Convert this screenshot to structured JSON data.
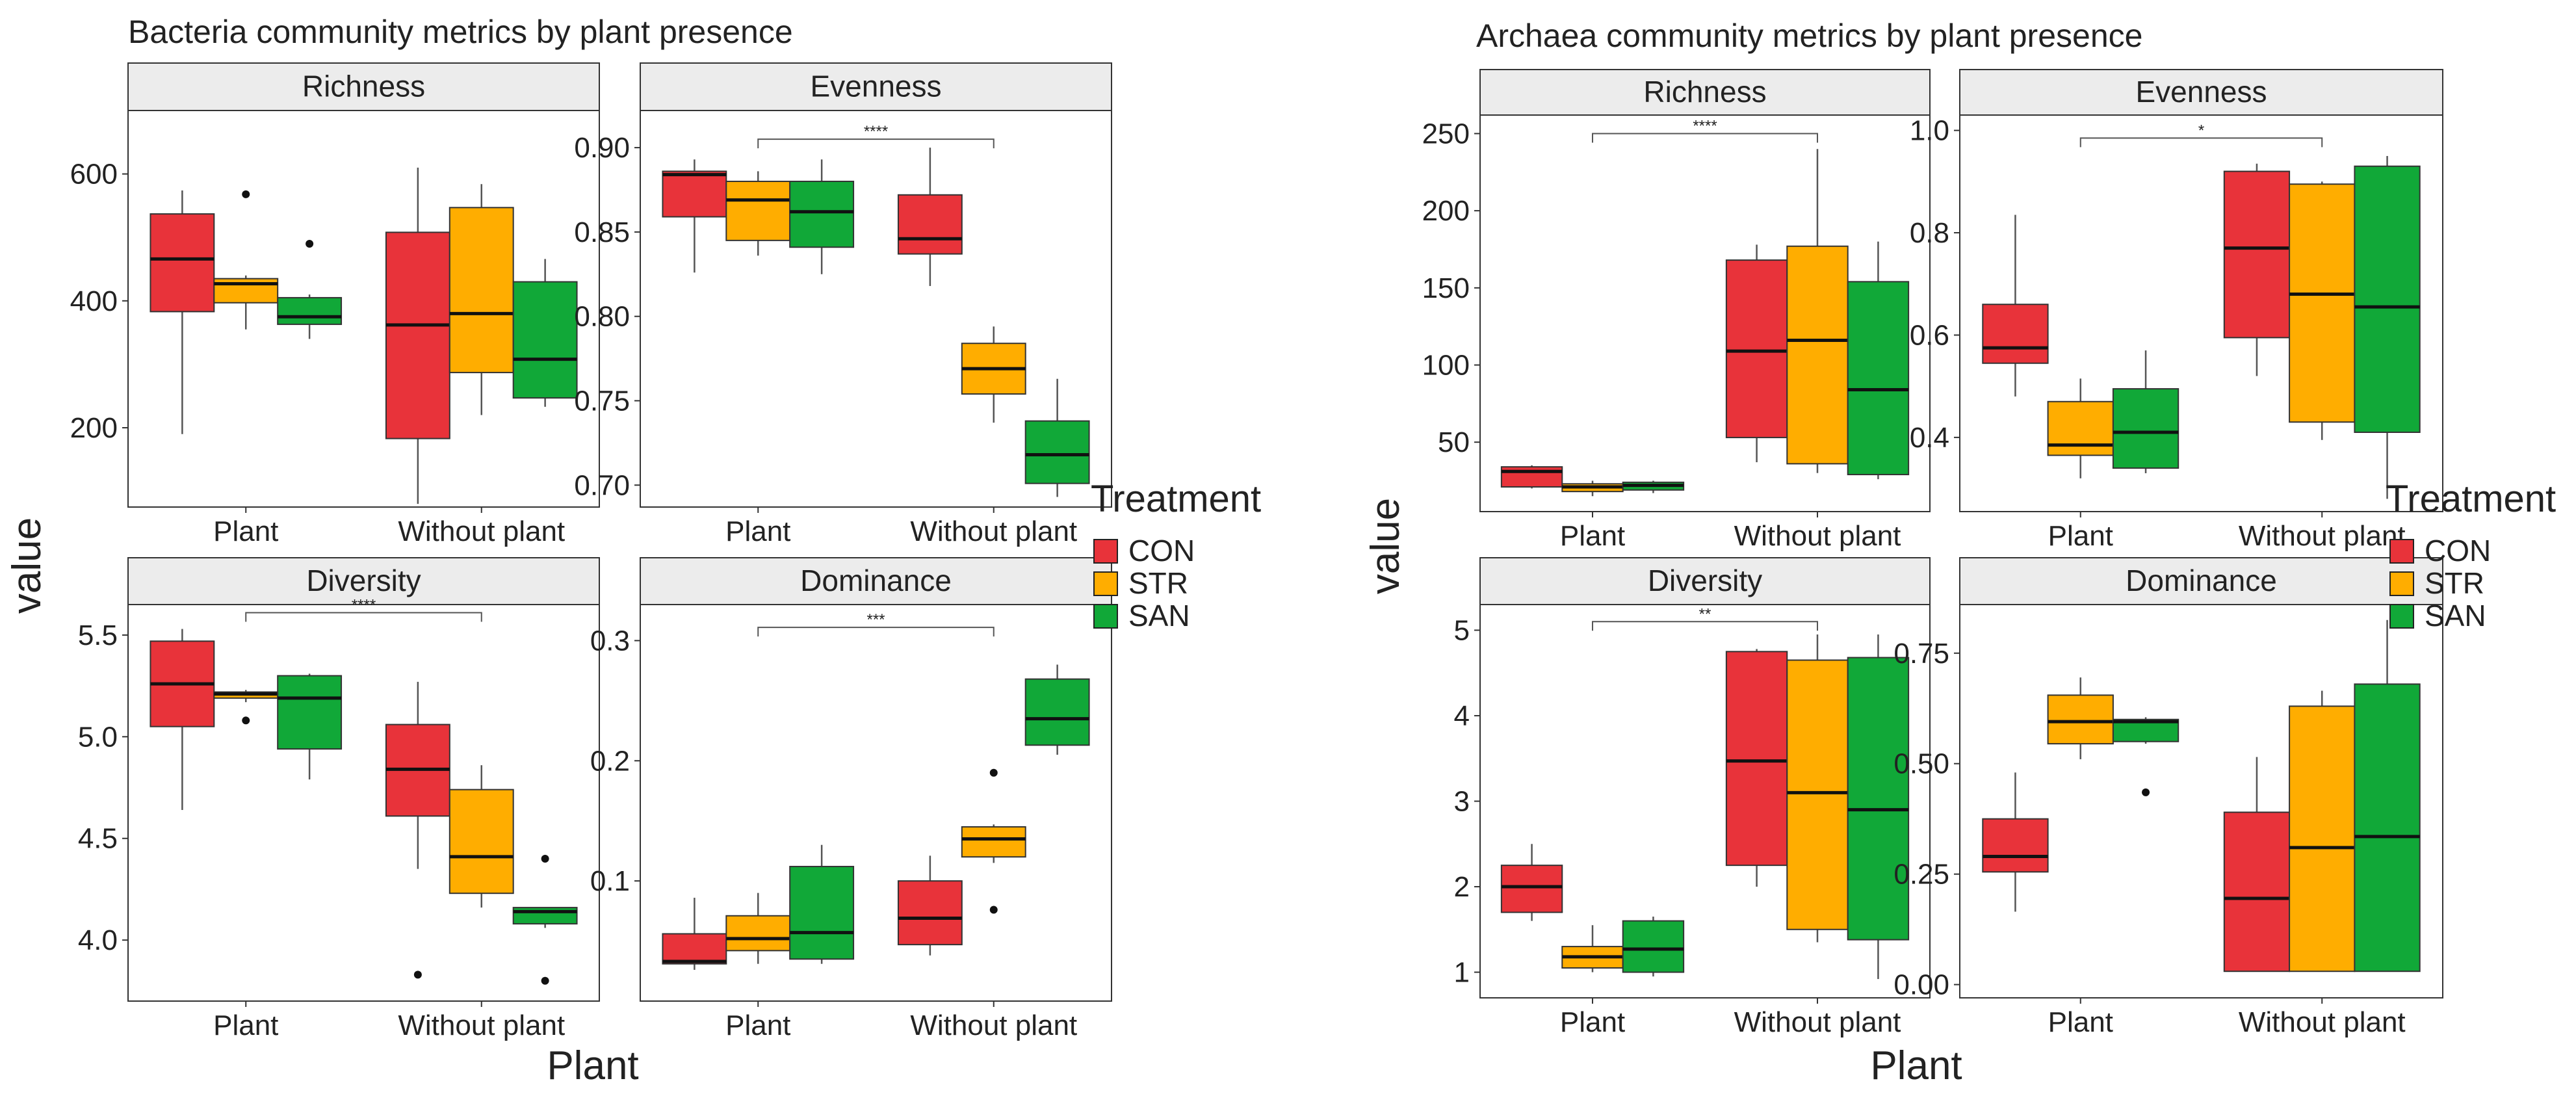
{
  "figure": {
    "left_title": "Bacteria community metrics by plant presence",
    "right_title": "Archaea community metrics by plant presence",
    "ylabel": "value",
    "xlabel": "Plant"
  },
  "legend": {
    "title": "Treatment",
    "items": [
      {
        "label": "CON",
        "color": "#E8333A"
      },
      {
        "label": "STR",
        "color": "#FFAD00"
      },
      {
        "label": "SAN",
        "color": "#11A838"
      }
    ]
  },
  "chart_data": [
    {
      "type": "box",
      "group": "Bacteria",
      "panel": "Richness",
      "title": "Richness",
      "categories": [
        "Plant",
        "Without plant"
      ],
      "ylim": [
        75,
        700
      ],
      "yticks": [
        200,
        400,
        600
      ],
      "series": [
        {
          "name": "CON",
          "boxes": [
            {
              "min": 190,
              "q1": 383,
              "median": 466,
              "q3": 537,
              "max": 574,
              "outliers": []
            },
            {
              "min": 80,
              "q1": 183,
              "median": 362,
              "q3": 508,
              "max": 610,
              "outliers": []
            }
          ]
        },
        {
          "name": "STR",
          "boxes": [
            {
              "min": 355,
              "q1": 397,
              "median": 427,
              "q3": 435,
              "max": 440,
              "outliers": [
                568
              ]
            },
            {
              "min": 220,
              "q1": 287,
              "median": 380,
              "q3": 547,
              "max": 584,
              "outliers": []
            }
          ]
        },
        {
          "name": "SAN",
          "boxes": [
            {
              "min": 340,
              "q1": 363,
              "median": 375,
              "q3": 405,
              "max": 410,
              "outliers": [
                490
              ]
            },
            {
              "min": 233,
              "q1": 247,
              "median": 308,
              "q3": 430,
              "max": 466,
              "outliers": []
            }
          ]
        }
      ]
    },
    {
      "type": "box",
      "group": "Bacteria",
      "panel": "Evenness",
      "title": "Evenness",
      "categories": [
        "Plant",
        "Without plant"
      ],
      "ylim": [
        0.687,
        0.922
      ],
      "yticks": [
        0.7,
        0.75,
        0.8,
        0.85,
        0.9
      ],
      "ytick_labels": [
        "0.70",
        "0.75",
        "0.80",
        "0.85",
        "0.90"
      ],
      "significance": {
        "label": "****",
        "y": 0.905
      },
      "series": [
        {
          "name": "CON",
          "boxes": [
            {
              "min": 0.826,
              "q1": 0.859,
              "median": 0.884,
              "q3": 0.886,
              "max": 0.893,
              "outliers": []
            },
            {
              "min": 0.818,
              "q1": 0.837,
              "median": 0.846,
              "q3": 0.872,
              "max": 0.9,
              "outliers": []
            }
          ]
        },
        {
          "name": "STR",
          "boxes": [
            {
              "min": 0.836,
              "q1": 0.845,
              "median": 0.869,
              "q3": 0.88,
              "max": 0.886,
              "outliers": []
            },
            {
              "min": 0.737,
              "q1": 0.754,
              "median": 0.769,
              "q3": 0.784,
              "max": 0.794,
              "outliers": []
            }
          ]
        },
        {
          "name": "SAN",
          "boxes": [
            {
              "min": 0.825,
              "q1": 0.841,
              "median": 0.862,
              "q3": 0.88,
              "max": 0.893,
              "outliers": []
            },
            {
              "min": 0.693,
              "q1": 0.701,
              "median": 0.718,
              "q3": 0.738,
              "max": 0.763,
              "outliers": []
            }
          ]
        }
      ]
    },
    {
      "type": "box",
      "group": "Bacteria",
      "panel": "Diversity",
      "title": "Diversity",
      "categories": [
        "Plant",
        "Without plant"
      ],
      "ylim": [
        3.7,
        5.65
      ],
      "yticks": [
        4.0,
        4.5,
        5.0,
        5.5
      ],
      "ytick_labels": [
        "4.0",
        "4.5",
        "5.0",
        "5.5"
      ],
      "significance": {
        "label": "****",
        "y": 5.61
      },
      "series": [
        {
          "name": "CON",
          "boxes": [
            {
              "min": 4.64,
              "q1": 5.05,
              "median": 5.26,
              "q3": 5.47,
              "max": 5.53,
              "outliers": []
            },
            {
              "min": 4.35,
              "q1": 4.61,
              "median": 4.84,
              "q3": 5.06,
              "max": 5.27,
              "outliers": [
                3.83
              ]
            }
          ]
        },
        {
          "name": "STR",
          "boxes": [
            {
              "min": 5.17,
              "q1": 5.19,
              "median": 5.21,
              "q3": 5.22,
              "max": 5.23,
              "outliers": [
                5.08
              ]
            },
            {
              "min": 4.16,
              "q1": 4.23,
              "median": 4.41,
              "q3": 4.74,
              "max": 4.86,
              "outliers": []
            }
          ]
        },
        {
          "name": "SAN",
          "boxes": [
            {
              "min": 4.79,
              "q1": 4.94,
              "median": 5.19,
              "q3": 5.3,
              "max": 5.31,
              "outliers": []
            },
            {
              "min": 4.06,
              "q1": 4.08,
              "median": 4.14,
              "q3": 4.16,
              "max": 4.16,
              "outliers": [
                4.4,
                3.8
              ]
            }
          ]
        }
      ]
    },
    {
      "type": "box",
      "group": "Bacteria",
      "panel": "Dominance",
      "title": "Dominance",
      "categories": [
        "Plant",
        "Without plant"
      ],
      "ylim": [
        0.0,
        0.33
      ],
      "yticks": [
        0.1,
        0.2,
        0.3
      ],
      "ytick_labels": [
        "0.1",
        "0.2",
        "0.3"
      ],
      "significance": {
        "label": "***",
        "y": 0.311
      },
      "series": [
        {
          "name": "CON",
          "boxes": [
            {
              "min": 0.026,
              "q1": 0.031,
              "median": 0.033,
              "q3": 0.056,
              "max": 0.086,
              "outliers": []
            },
            {
              "min": 0.038,
              "q1": 0.047,
              "median": 0.069,
              "q3": 0.1,
              "max": 0.121,
              "outliers": []
            }
          ]
        },
        {
          "name": "STR",
          "boxes": [
            {
              "min": 0.031,
              "q1": 0.042,
              "median": 0.052,
              "q3": 0.071,
              "max": 0.09,
              "outliers": []
            },
            {
              "min": 0.115,
              "q1": 0.12,
              "median": 0.135,
              "q3": 0.145,
              "max": 0.147,
              "outliers": [
                0.19,
                0.076
              ]
            }
          ]
        },
        {
          "name": "SAN",
          "boxes": [
            {
              "min": 0.031,
              "q1": 0.035,
              "median": 0.057,
              "q3": 0.112,
              "max": 0.13,
              "outliers": []
            },
            {
              "min": 0.205,
              "q1": 0.213,
              "median": 0.235,
              "q3": 0.268,
              "max": 0.28,
              "outliers": []
            }
          ]
        }
      ]
    },
    {
      "type": "box",
      "group": "Archaea",
      "panel": "Richness",
      "title": "Richness",
      "categories": [
        "Plant",
        "Without plant"
      ],
      "ylim": [
        5,
        262
      ],
      "yticks": [
        50,
        100,
        150,
        200,
        250
      ],
      "significance": {
        "label": "****",
        "y": 250
      },
      "series": [
        {
          "name": "CON",
          "boxes": [
            {
              "min": 20,
              "q1": 21,
              "median": 31,
              "q3": 34,
              "max": 35,
              "outliers": []
            },
            {
              "min": 37,
              "q1": 53,
              "median": 109,
              "q3": 168,
              "max": 178,
              "outliers": []
            }
          ]
        },
        {
          "name": "STR",
          "boxes": [
            {
              "min": 15,
              "q1": 18,
              "median": 21,
              "q3": 23,
              "max": 25,
              "outliers": []
            },
            {
              "min": 30,
              "q1": 36,
              "median": 116,
              "q3": 177,
              "max": 240,
              "outliers": []
            }
          ]
        },
        {
          "name": "SAN",
          "boxes": [
            {
              "min": 17,
              "q1": 19,
              "median": 22,
              "q3": 24,
              "max": 25,
              "outliers": []
            },
            {
              "min": 26,
              "q1": 29,
              "median": 84,
              "q3": 154,
              "max": 180,
              "outliers": []
            }
          ]
        }
      ]
    },
    {
      "type": "box",
      "group": "Archaea",
      "panel": "Evenness",
      "title": "Evenness",
      "categories": [
        "Plant",
        "Without plant"
      ],
      "ylim": [
        0.255,
        1.03
      ],
      "yticks": [
        0.4,
        0.6,
        0.8,
        1.0
      ],
      "ytick_labels": [
        "0.4",
        "0.6",
        "0.8",
        "1.0"
      ],
      "significance": {
        "label": "*",
        "y": 0.985
      },
      "series": [
        {
          "name": "CON",
          "boxes": [
            {
              "min": 0.48,
              "q1": 0.545,
              "median": 0.575,
              "q3": 0.66,
              "max": 0.835,
              "outliers": []
            },
            {
              "min": 0.52,
              "q1": 0.595,
              "median": 0.77,
              "q3": 0.92,
              "max": 0.935,
              "outliers": []
            }
          ]
        },
        {
          "name": "STR",
          "boxes": [
            {
              "min": 0.32,
              "q1": 0.365,
              "median": 0.385,
              "q3": 0.47,
              "max": 0.515,
              "outliers": []
            },
            {
              "min": 0.395,
              "q1": 0.43,
              "median": 0.68,
              "q3": 0.895,
              "max": 0.9,
              "outliers": []
            }
          ]
        },
        {
          "name": "SAN",
          "boxes": [
            {
              "min": 0.33,
              "q1": 0.34,
              "median": 0.41,
              "q3": 0.495,
              "max": 0.57,
              "outliers": []
            },
            {
              "min": 0.28,
              "q1": 0.41,
              "median": 0.655,
              "q3": 0.93,
              "max": 0.95,
              "outliers": []
            }
          ]
        }
      ]
    },
    {
      "type": "box",
      "group": "Archaea",
      "panel": "Diversity",
      "title": "Diversity",
      "categories": [
        "Plant",
        "Without plant"
      ],
      "ylim": [
        0.7,
        5.3
      ],
      "yticks": [
        1,
        2,
        3,
        4,
        5
      ],
      "significance": {
        "label": "**",
        "y": 5.1
      },
      "series": [
        {
          "name": "CON",
          "boxes": [
            {
              "min": 1.6,
              "q1": 1.7,
              "median": 2.0,
              "q3": 2.25,
              "max": 2.5,
              "outliers": []
            },
            {
              "min": 2.0,
              "q1": 2.25,
              "median": 3.47,
              "q3": 4.75,
              "max": 4.78,
              "outliers": []
            }
          ]
        },
        {
          "name": "STR",
          "boxes": [
            {
              "min": 1.0,
              "q1": 1.05,
              "median": 1.18,
              "q3": 1.3,
              "max": 1.55,
              "outliers": []
            },
            {
              "min": 1.35,
              "q1": 1.5,
              "median": 3.1,
              "q3": 4.65,
              "max": 4.95,
              "outliers": []
            }
          ]
        },
        {
          "name": "SAN",
          "boxes": [
            {
              "min": 0.95,
              "q1": 1.0,
              "median": 1.27,
              "q3": 1.6,
              "max": 1.65,
              "outliers": []
            },
            {
              "min": 0.92,
              "q1": 1.38,
              "median": 2.9,
              "q3": 4.68,
              "max": 4.95,
              "outliers": []
            }
          ]
        }
      ]
    },
    {
      "type": "box",
      "group": "Archaea",
      "panel": "Dominance",
      "title": "Dominance",
      "categories": [
        "Plant",
        "Without plant"
      ],
      "ylim": [
        -0.03,
        0.86
      ],
      "yticks": [
        0.0,
        0.25,
        0.5,
        0.75
      ],
      "ytick_labels": [
        "0.00",
        "0.25",
        "0.50",
        "0.75"
      ],
      "series": [
        {
          "name": "CON",
          "boxes": [
            {
              "min": 0.165,
              "q1": 0.255,
              "median": 0.29,
              "q3": 0.375,
              "max": 0.48,
              "outliers": []
            },
            {
              "min": 0.03,
              "q1": 0.03,
              "median": 0.195,
              "q3": 0.39,
              "max": 0.515,
              "outliers": []
            }
          ]
        },
        {
          "name": "STR",
          "boxes": [
            {
              "min": 0.51,
              "q1": 0.545,
              "median": 0.595,
              "q3": 0.655,
              "max": 0.695,
              "outliers": []
            },
            {
              "min": 0.03,
              "q1": 0.03,
              "median": 0.31,
              "q3": 0.63,
              "max": 0.665,
              "outliers": []
            }
          ]
        },
        {
          "name": "SAN",
          "boxes": [
            {
              "min": 0.545,
              "q1": 0.55,
              "median": 0.595,
              "q3": 0.6,
              "max": 0.605,
              "outliers": [
                0.435
              ]
            },
            {
              "min": 0.03,
              "q1": 0.03,
              "median": 0.335,
              "q3": 0.68,
              "max": 0.825,
              "outliers": []
            }
          ]
        }
      ]
    }
  ]
}
